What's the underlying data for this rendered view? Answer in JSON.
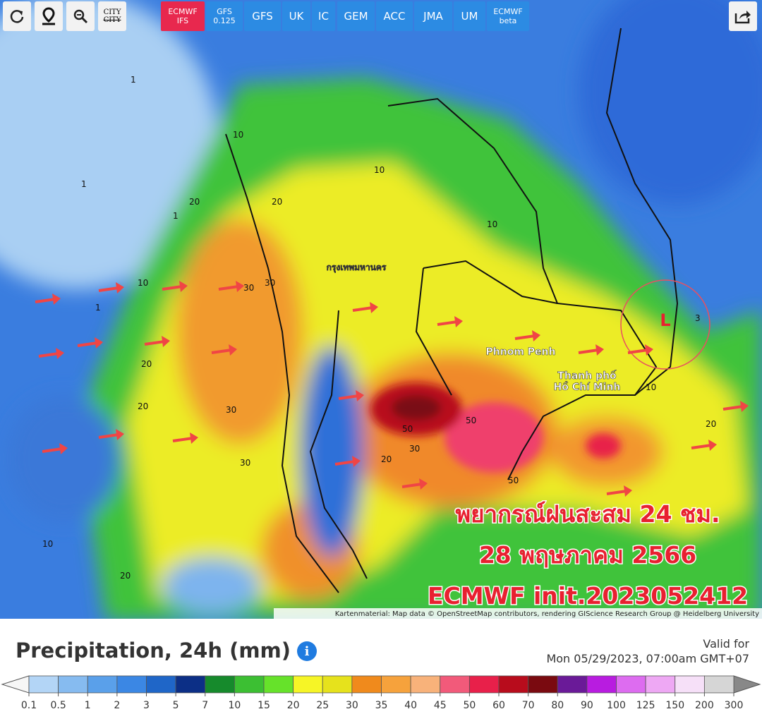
{
  "toolbar": {
    "buttons": [
      "ECMWF\nIFS",
      "GFS\n0.125",
      "GFS",
      "UK",
      "IC",
      "GEM",
      "ACC",
      "JMA",
      "UM",
      "ECMWF\nbeta"
    ],
    "city": [
      "CITY",
      "CITY"
    ]
  },
  "map": {
    "places": [
      "กรุงเทพมหานคร",
      "Phnom Penh",
      "Thanh phố\nHồ Chí Minh",
      "L"
    ],
    "contour_labels": [
      "1",
      "1",
      "1",
      "1",
      "10",
      "10",
      "10",
      "10",
      "20",
      "20",
      "20",
      "20",
      "20",
      "30",
      "30",
      "30",
      "30",
      "30",
      "50",
      "50",
      "50",
      "20",
      "20",
      "10",
      "3",
      "10"
    ],
    "overlay": [
      "พยากรณ์ฝนสะสม 24 ชม.",
      "28 พฤษภาคม 2566",
      "ECMWF init.2023052412"
    ],
    "attribution": "Kartenmaterial: Map data © OpenStreetMap contributors, rendering GIScience Research Group @ Heidelberg University"
  },
  "legend": {
    "title": "Precipitation, 24h (mm)",
    "valid_label": "Valid for",
    "valid_time": "Mon 05/29/2023, 07:00am GMT+07",
    "ticks": [
      0.1,
      0.5,
      1,
      2,
      3,
      5,
      7,
      10,
      15,
      20,
      25,
      30,
      35,
      40,
      45,
      50,
      60,
      70,
      80,
      90,
      100,
      125,
      150,
      200,
      300
    ],
    "colors": [
      "#b3d5f6",
      "#86bbf0",
      "#5aa0ea",
      "#3b87e4",
      "#1f66c8",
      "#0c2f86",
      "#168a2c",
      "#3cbf33",
      "#66e22a",
      "#f6f526",
      "#e6e21c",
      "#f08a1c",
      "#f6a23c",
      "#f8b27a",
      "#f25a7a",
      "#e8204a",
      "#b80c1c",
      "#7a0a10",
      "#6a1a98",
      "#b81ce0",
      "#dd6cf0",
      "#eea8f4",
      "#f6e0f8",
      "#d6d6d6"
    ]
  }
}
